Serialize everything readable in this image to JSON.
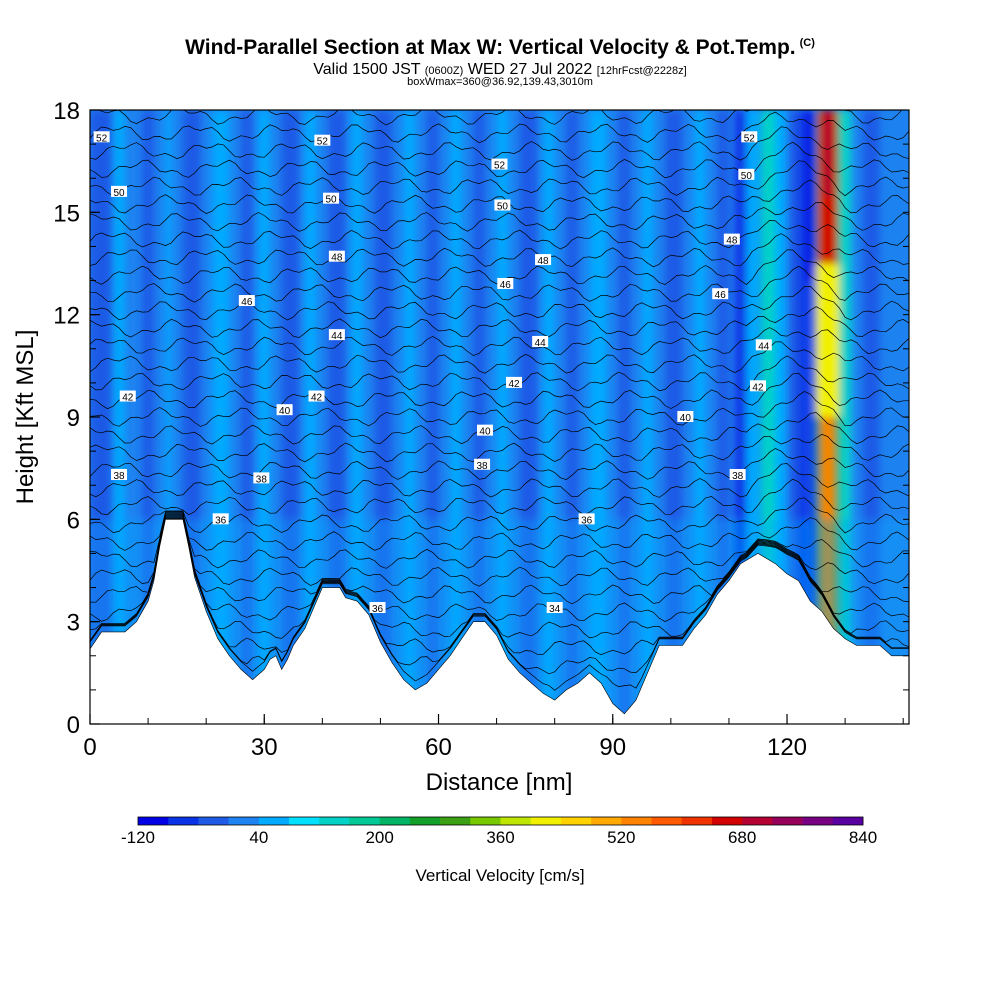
{
  "title": "Wind-Parallel Section at Max W: Vertical Velocity & Pot.Temp.",
  "title_mark": "(C)",
  "subtitle_valid": "Valid 1500 JST",
  "subtitle_utc": "(0600Z)",
  "subtitle_date": "WED 27 Jul 2022",
  "subtitle_fcst": "[12hrFcst@2228z]",
  "subtitle_box": "boxWmax=360@36.92,139.43,3010m",
  "chart_data": {
    "type": "heatmap",
    "xlabel": "Distance [nm]",
    "ylabel": "Height [Kft MSL]",
    "xlim": [
      0,
      141
    ],
    "ylim": [
      0,
      18
    ],
    "xticks": [
      "0",
      "30",
      "60",
      "90",
      "120"
    ],
    "yticks": [
      "0",
      "3",
      "6",
      "9",
      "12",
      "15",
      "18"
    ],
    "colorbar": {
      "label": "Vertical Velocity [cm/s]",
      "tick_labels": [
        "-120",
        "40",
        "200",
        "360",
        "520",
        "680",
        "840"
      ],
      "colors": [
        "#0000e6",
        "#0a32e6",
        "#1e5ae6",
        "#1e82f0",
        "#00aaff",
        "#00e0ff",
        "#00d2c8",
        "#00c896",
        "#00b464",
        "#14a028",
        "#3ca014",
        "#78c800",
        "#bee600",
        "#f0f000",
        "#ffd200",
        "#ffaa00",
        "#ff8200",
        "#ff5a00",
        "#f03200",
        "#d20000",
        "#b40032",
        "#96005a",
        "#780082",
        "#5a00a0"
      ]
    },
    "terrain": [
      [
        0,
        2.2
      ],
      [
        2,
        2.7
      ],
      [
        6,
        2.7
      ],
      [
        8,
        3
      ],
      [
        10,
        3.6
      ],
      [
        11,
        4.2
      ],
      [
        12,
        5.2
      ],
      [
        13,
        6
      ],
      [
        16,
        6
      ],
      [
        17,
        5.2
      ],
      [
        18,
        4.3
      ],
      [
        20,
        3.3
      ],
      [
        22,
        2.5
      ],
      [
        24,
        2
      ],
      [
        26,
        1.6
      ],
      [
        28,
        1.3
      ],
      [
        30,
        1.6
      ],
      [
        31,
        1.9
      ],
      [
        32,
        2
      ],
      [
        33,
        1.6
      ],
      [
        34,
        1.9
      ],
      [
        35,
        2.3
      ],
      [
        37,
        2.8
      ],
      [
        39,
        3.6
      ],
      [
        40,
        4
      ],
      [
        43,
        4
      ],
      [
        44,
        3.7
      ],
      [
        46,
        3.6
      ],
      [
        48,
        3.2
      ],
      [
        50,
        2.4
      ],
      [
        52,
        1.8
      ],
      [
        54,
        1.3
      ],
      [
        56,
        1
      ],
      [
        58,
        1.2
      ],
      [
        60,
        1.6
      ],
      [
        62,
        2
      ],
      [
        64,
        2.5
      ],
      [
        66,
        3
      ],
      [
        68,
        3
      ],
      [
        70,
        2.6
      ],
      [
        72,
        1.9
      ],
      [
        74,
        1.5
      ],
      [
        76,
        1.2
      ],
      [
        78,
        0.9
      ],
      [
        80,
        0.7
      ],
      [
        82,
        1
      ],
      [
        84,
        1.2
      ],
      [
        86,
        1.5
      ],
      [
        88,
        1.2
      ],
      [
        90,
        0.6
      ],
      [
        92,
        0.3
      ],
      [
        94,
        0.7
      ],
      [
        96,
        1.5
      ],
      [
        98,
        2.3
      ],
      [
        102,
        2.3
      ],
      [
        104,
        2.8
      ],
      [
        106,
        3.2
      ],
      [
        108,
        3.8
      ],
      [
        110,
        4.2
      ],
      [
        112,
        4.7
      ],
      [
        115,
        5
      ],
      [
        118,
        4.7
      ],
      [
        120,
        4.4
      ],
      [
        122,
        4.2
      ],
      [
        124,
        3.6
      ],
      [
        126,
        3.3
      ],
      [
        128,
        2.8
      ],
      [
        130,
        2.5
      ],
      [
        132,
        2.3
      ],
      [
        136,
        2.3
      ],
      [
        138,
        2
      ],
      [
        141,
        2
      ]
    ],
    "theta_labels": [
      {
        "text": "52",
        "x": 2,
        "y": 17.2
      },
      {
        "text": "50",
        "x": 5,
        "y": 15.6
      },
      {
        "text": "42",
        "x": 6.5,
        "y": 9.6
      },
      {
        "text": "38",
        "x": 5,
        "y": 7.3
      },
      {
        "text": "46",
        "x": 27,
        "y": 12.4
      },
      {
        "text": "40",
        "x": 33.5,
        "y": 9.2
      },
      {
        "text": "38",
        "x": 29.5,
        "y": 7.2
      },
      {
        "text": "36",
        "x": 22.5,
        "y": 6
      },
      {
        "text": "52",
        "x": 40,
        "y": 17.1
      },
      {
        "text": "50",
        "x": 41.5,
        "y": 15.4
      },
      {
        "text": "48",
        "x": 42.5,
        "y": 13.7
      },
      {
        "text": "44",
        "x": 42.5,
        "y": 11.4
      },
      {
        "text": "42",
        "x": 39,
        "y": 9.6
      },
      {
        "text": "36",
        "x": 49.5,
        "y": 3.4
      },
      {
        "text": "52",
        "x": 70.5,
        "y": 16.4
      },
      {
        "text": "50",
        "x": 71,
        "y": 15.2
      },
      {
        "text": "46",
        "x": 71.5,
        "y": 12.9
      },
      {
        "text": "48",
        "x": 78,
        "y": 13.6
      },
      {
        "text": "44",
        "x": 77.5,
        "y": 11.2
      },
      {
        "text": "42",
        "x": 73,
        "y": 10
      },
      {
        "text": "40",
        "x": 68,
        "y": 8.6
      },
      {
        "text": "38",
        "x": 67.5,
        "y": 7.6
      },
      {
        "text": "36",
        "x": 85.5,
        "y": 6
      },
      {
        "text": "34",
        "x": 80,
        "y": 3.4
      },
      {
        "text": "40",
        "x": 102.5,
        "y": 9
      },
      {
        "text": "38",
        "x": 111.5,
        "y": 7.3
      },
      {
        "text": "48",
        "x": 110.5,
        "y": 14.2
      },
      {
        "text": "46",
        "x": 108.5,
        "y": 12.6
      },
      {
        "text": "50",
        "x": 113,
        "y": 16.1
      },
      {
        "text": "52",
        "x": 113.5,
        "y": 17.2
      },
      {
        "text": "44",
        "x": 116,
        "y": 11.1
      },
      {
        "text": "42",
        "x": 115,
        "y": 9.9
      }
    ]
  }
}
